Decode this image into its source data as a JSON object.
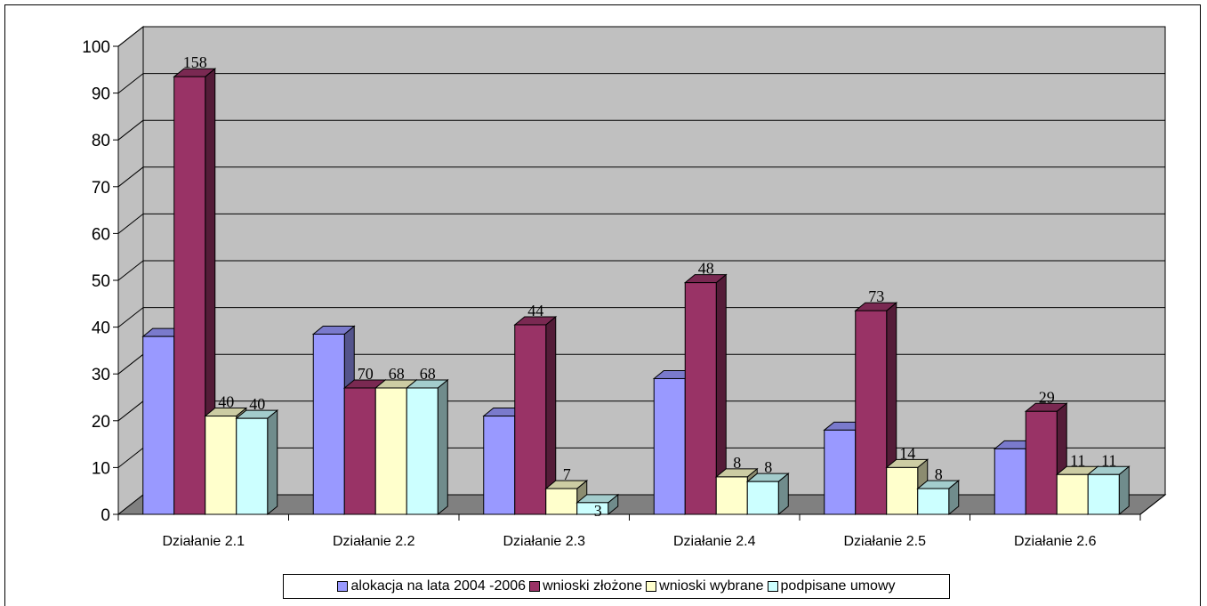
{
  "chart_data": {
    "type": "bar",
    "three_d": true,
    "categories": [
      "Działanie 2.1",
      "Działanie 2.2",
      "Działanie 2.3",
      "Działanie 2.4",
      "Działanie 2.5",
      "Działanie 2.6"
    ],
    "series": [
      {
        "name": "alokacja na lata 2004 -2006",
        "color": "#9999ff",
        "values": [
          38,
          38.5,
          21,
          29,
          18,
          14
        ],
        "labels": [
          "",
          "",
          "",
          "",
          "",
          ""
        ]
      },
      {
        "name": "wnioski złożone",
        "color": "#993366",
        "values": [
          93.5,
          27,
          40.5,
          49.5,
          43.5,
          22
        ],
        "labels": [
          "158",
          "70",
          "44",
          "48",
          "73",
          "29"
        ]
      },
      {
        "name": "wnioski wybrane",
        "color": "#ffffcc",
        "values": [
          21,
          27,
          5.5,
          8,
          10,
          8.5
        ],
        "labels": [
          "40",
          "68",
          "7",
          "8",
          "14",
          "11"
        ]
      },
      {
        "name": "podpisane umowy",
        "color": "#ccffff",
        "values": [
          20.5,
          27,
          2.5,
          7,
          5.5,
          8.5
        ],
        "labels": [
          "40",
          "68",
          "3",
          "8",
          "8",
          "11"
        ]
      }
    ],
    "y_ticks": [
      "0",
      "10",
      "20",
      "30",
      "40",
      "50",
      "60",
      "70",
      "80",
      "90",
      "100"
    ],
    "ylim": [
      0,
      100
    ],
    "grid": true,
    "legend_position": "bottom",
    "wall_color": "#c0c0c0",
    "floor_color": "#808080"
  }
}
